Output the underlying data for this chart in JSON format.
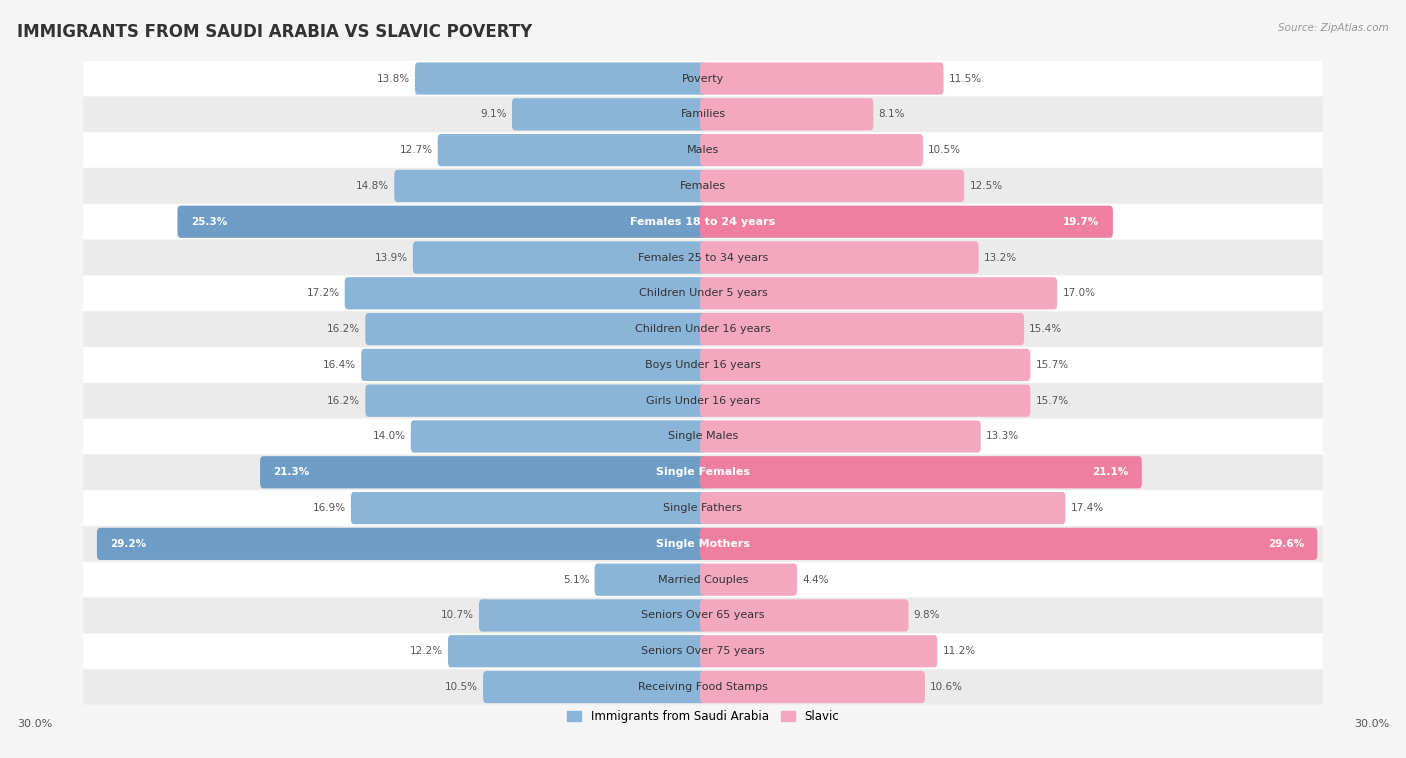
{
  "title": "IMMIGRANTS FROM SAUDI ARABIA VS SLAVIC POVERTY",
  "source": "Source: ZipAtlas.com",
  "categories": [
    "Poverty",
    "Families",
    "Males",
    "Females",
    "Females 18 to 24 years",
    "Females 25 to 34 years",
    "Children Under 5 years",
    "Children Under 16 years",
    "Boys Under 16 years",
    "Girls Under 16 years",
    "Single Males",
    "Single Females",
    "Single Fathers",
    "Single Mothers",
    "Married Couples",
    "Seniors Over 65 years",
    "Seniors Over 75 years",
    "Receiving Food Stamps"
  ],
  "left_values": [
    13.8,
    9.1,
    12.7,
    14.8,
    25.3,
    13.9,
    17.2,
    16.2,
    16.4,
    16.2,
    14.0,
    21.3,
    16.9,
    29.2,
    5.1,
    10.7,
    12.2,
    10.5
  ],
  "right_values": [
    11.5,
    8.1,
    10.5,
    12.5,
    19.7,
    13.2,
    17.0,
    15.4,
    15.7,
    15.7,
    13.3,
    21.1,
    17.4,
    29.6,
    4.4,
    9.8,
    11.2,
    10.6
  ],
  "left_color": "#8ab4d8",
  "right_color": "#f4a8bf",
  "highlight_left_color": "#6e9ec8",
  "highlight_right_color": "#ee7fa0",
  "highlight_rows": [
    4,
    11,
    13
  ],
  "axis_max": 30.0,
  "legend_left": "Immigrants from Saudi Arabia",
  "legend_right": "Slavic",
  "bg_color": "#f5f5f5",
  "row_light_color": "#ffffff",
  "row_dark_color": "#ebebeb",
  "bar_height": 0.6,
  "title_fontsize": 12,
  "label_fontsize": 8,
  "value_fontsize": 7.5
}
